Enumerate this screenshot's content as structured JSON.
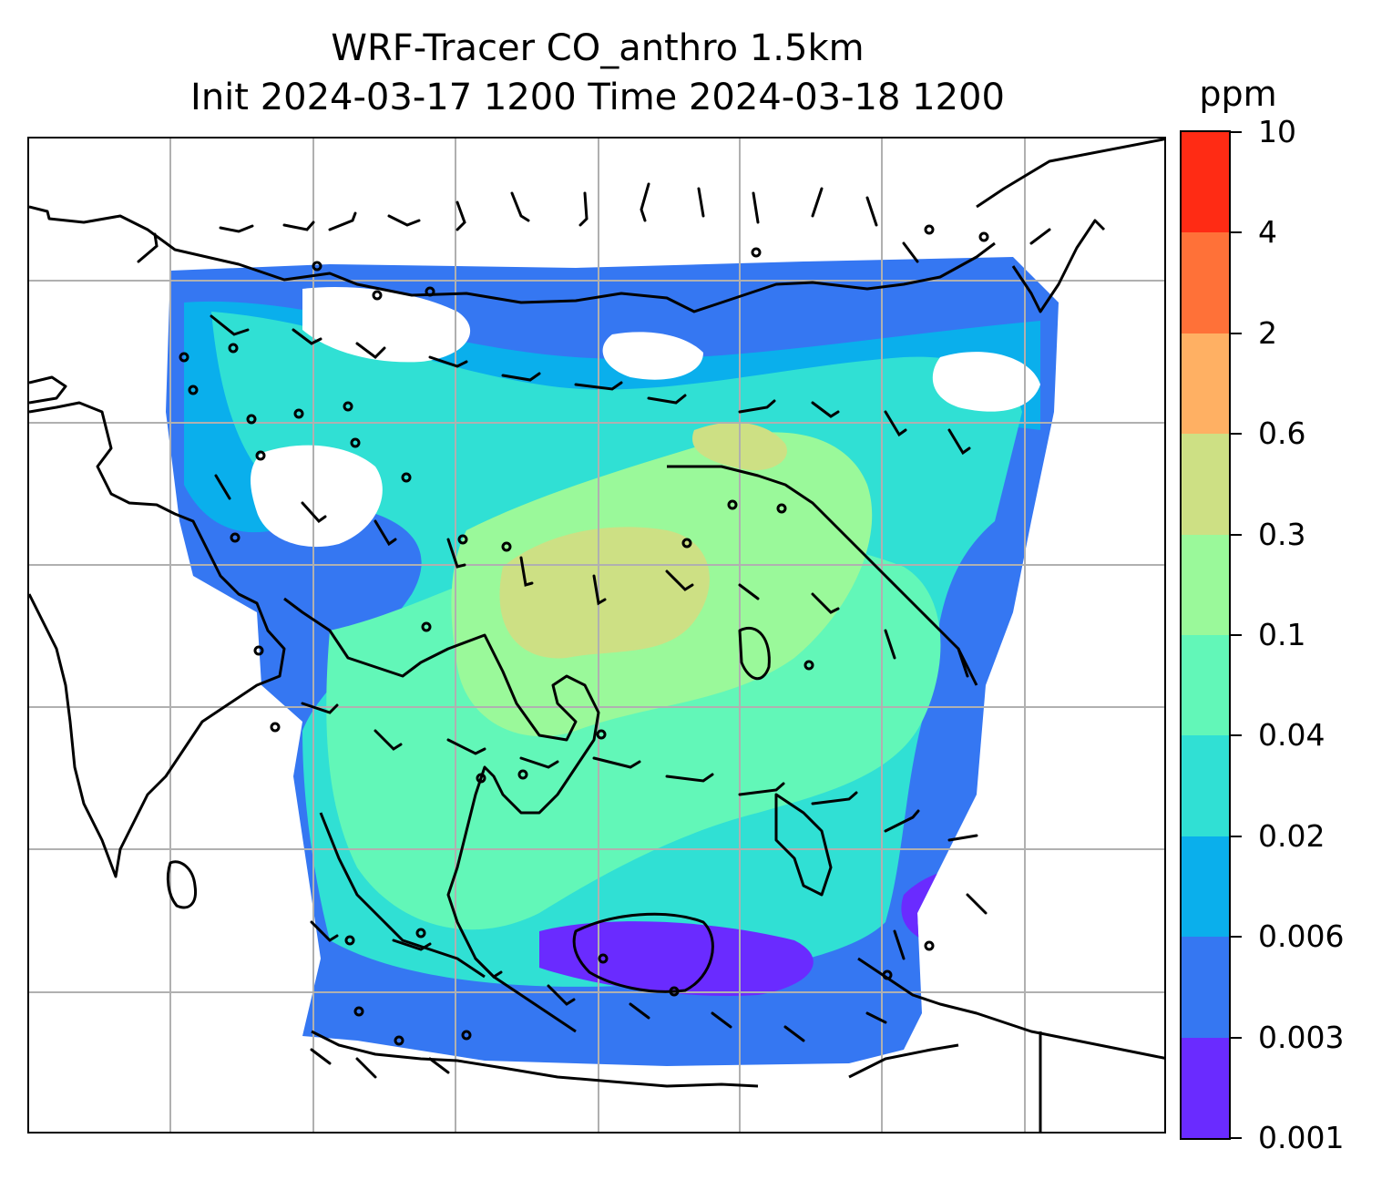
{
  "title": {
    "line1": "WRF-Tracer CO_anthro 1.5km",
    "line2": "Init 2024-03-17 1200 Time 2024-03-18 1200"
  },
  "colorbar": {
    "label": "ppm",
    "tick_labels": [
      "0.001",
      "0.003",
      "0.006",
      "0.02",
      "0.04",
      "0.1",
      "0.3",
      "0.6",
      "2",
      "4",
      "10"
    ],
    "colors": [
      "#6a2bff",
      "#3577f2",
      "#0aafec",
      "#30e0d4",
      "#62f7b8",
      "#9af99a",
      "#cde084",
      "#ffb063",
      "#ff7138",
      "#ff2b14"
    ]
  },
  "map": {
    "field": "CO_anthro",
    "background_color": "#ffffff",
    "gridline_color": "#b0b0b0",
    "coastline_color": "#000000"
  }
}
